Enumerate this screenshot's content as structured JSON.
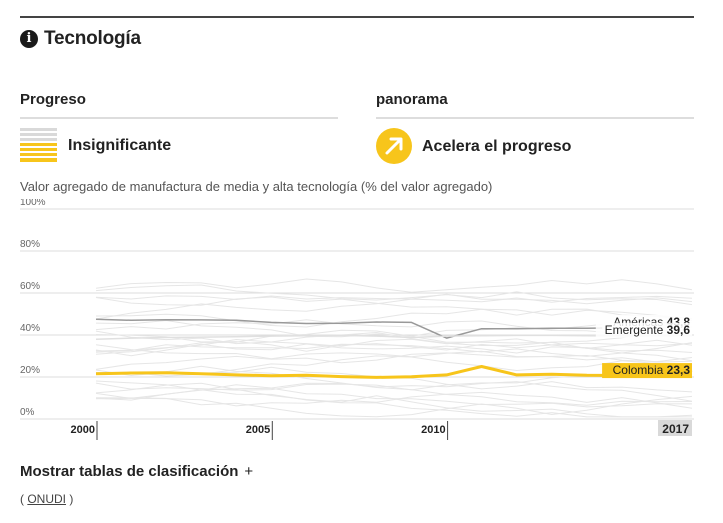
{
  "header": {
    "title": "Tecnología",
    "info_icon": "info-icon"
  },
  "progress": {
    "heading": "Progreso",
    "status": "Insignificante",
    "icon": "stacked-lines-icon",
    "color": "#f7c51b"
  },
  "overview": {
    "heading": "panorama",
    "status": "Acelera el progreso",
    "icon": "arrow-up-right-icon",
    "color": "#f7c51b"
  },
  "chart_data": {
    "type": "line",
    "subtitle": "Valor agregado de manufactura de media y alta tecnología (% del valor agregado)",
    "x": [
      2000,
      2001,
      2002,
      2003,
      2004,
      2005,
      2006,
      2007,
      2008,
      2009,
      2010,
      2011,
      2012,
      2013,
      2014,
      2015,
      2016,
      2017
    ],
    "x_range": [
      2000,
      2017
    ],
    "ylim": [
      0,
      100
    ],
    "y_ticks": [
      0,
      20,
      40,
      60,
      80,
      100
    ],
    "y_tick_labels": [
      "0%",
      "20%",
      "40%",
      "60%",
      "80%",
      "100%"
    ],
    "x_tick_labels": [
      "2000",
      "2005",
      "2010",
      "2017"
    ],
    "series": [
      {
        "name": "Américas",
        "value_label": "43,8",
        "color": "#999999",
        "values": [
          47.5,
          47.0,
          47.3,
          47.2,
          47.0,
          46.0,
          45.5,
          45.6,
          46.2,
          46.0,
          38.5,
          43.0,
          43.0,
          43.2,
          43.2,
          43.5,
          43.4,
          43.8
        ]
      },
      {
        "name": "Emergente",
        "value_label": "39,6",
        "color": "#e0e0e0",
        "values": [
          38.0,
          38.5,
          38.8,
          39.0,
          39.2,
          39.5,
          39.6,
          39.8,
          39.5,
          38.8,
          39.5,
          39.6,
          39.8,
          39.8,
          39.6,
          39.5,
          39.6,
          39.6
        ]
      },
      {
        "name": "Colombia",
        "value_label": "23,3",
        "color": "#f7c51b",
        "values": [
          21.5,
          21.9,
          22.0,
          21.5,
          21.0,
          20.6,
          20.8,
          20.2,
          19.8,
          20.1,
          21.0,
          25.0,
          21.0,
          21.3,
          20.8,
          20.7,
          21.0,
          23.3
        ]
      }
    ],
    "background_series_color": "#e6e6e6",
    "highlight_year_label": "2017"
  },
  "footer": {
    "more_label": "Mostrar tablas de clasificación",
    "more_icon": "+",
    "source_prefix": "(",
    "source_link": "ONUDI",
    "source_suffix": ")"
  }
}
